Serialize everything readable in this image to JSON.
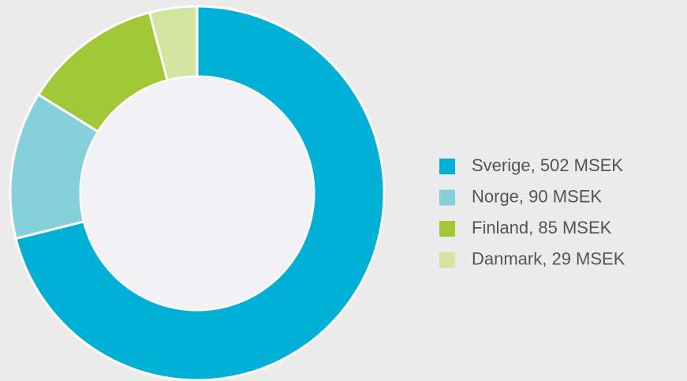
{
  "chart_data": {
    "type": "pie",
    "donut": true,
    "categories": [
      "Sverige, 502 MSEK",
      "Norge, 90 MSEK",
      "Finland, 85 MSEK",
      "Danmark, 29 MSEK"
    ],
    "values": [
      502,
      90,
      85,
      29
    ],
    "colors": [
      "#00b0d6",
      "#86d0dc",
      "#a0c837",
      "#d2e5a0"
    ],
    "legend": "right"
  }
}
